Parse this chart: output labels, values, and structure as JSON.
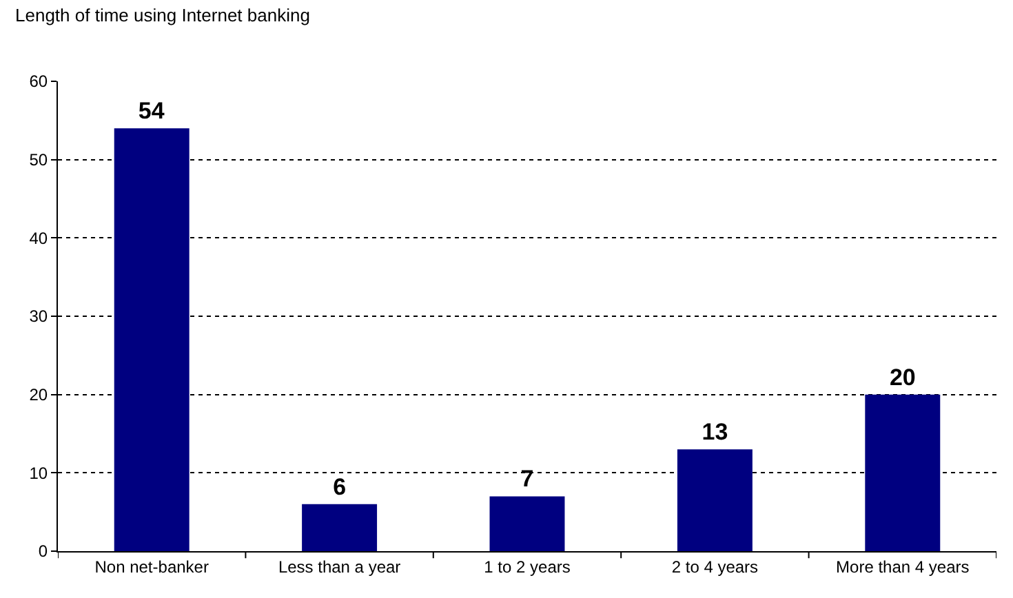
{
  "chart_data": {
    "type": "bar",
    "title": "Length of time using Internet banking",
    "categories": [
      "Non net-banker",
      "Less than a year",
      "1 to 2 years",
      "2 to 4 years",
      "More than 4 years"
    ],
    "values": [
      54,
      6,
      7,
      13,
      20
    ],
    "color": "#000080",
    "ylim": [
      0,
      60
    ],
    "yticks": [
      0,
      10,
      20,
      30,
      40,
      50,
      60
    ],
    "grid": "y",
    "data_labels": true
  }
}
